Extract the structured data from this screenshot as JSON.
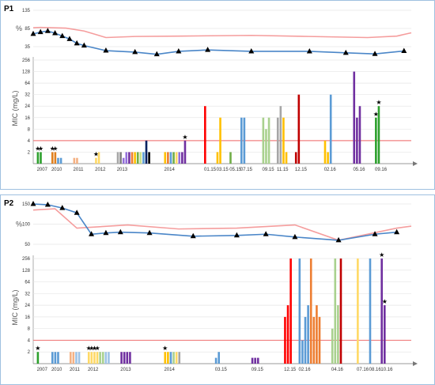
{
  "chart_data": [
    {
      "type": "bar",
      "panel": "P1",
      "percent_axis": {
        "label": "%",
        "ticks": [
          135,
          85,
          35
        ]
      },
      "mic_axis": {
        "label": "MIC (mg/L)",
        "ticks": [
          0,
          2,
          4,
          8,
          16,
          24,
          32,
          64,
          128,
          256
        ],
        "scale": "segmented-log",
        "breakpoint_line": 4
      },
      "x_labels": [
        "2007",
        "2010",
        "2011",
        "2012",
        "2013",
        "2014",
        "01.15",
        "03.15",
        "05.15",
        "07.15",
        "09.15",
        "11.15",
        "12.15",
        "02.16",
        "05.16",
        "09.16"
      ],
      "series": [
        {
          "color": "#f59d9d",
          "x": [
            0,
            10,
            45,
            70,
            100,
            140,
            200,
            300,
            380,
            460,
            500,
            520
          ],
          "values": [
            87,
            88,
            86,
            78,
            60,
            63,
            64,
            66,
            63,
            60,
            64,
            73
          ]
        },
        {
          "color": "#4a86c8",
          "x": [
            0,
            10,
            20,
            30,
            40,
            50,
            60,
            70,
            100,
            140,
            170,
            200,
            240,
            300,
            380,
            430,
            470,
            510
          ],
          "values": [
            70,
            75,
            78,
            72,
            64,
            56,
            44,
            38,
            24,
            20,
            14,
            22,
            26,
            22,
            22,
            18,
            15,
            23
          ]
        }
      ],
      "bar_groups": [
        {
          "label": "2007",
          "x": 5,
          "stars": [
            1,
            1
          ],
          "bars": [
            {
              "color": "#2ca02c",
              "value": 2
            },
            {
              "color": "#2ca02c",
              "value": 2
            }
          ]
        },
        {
          "label": "2010",
          "x": 25,
          "stars": [
            1,
            1
          ],
          "bars": [
            {
              "color": "#e08020",
              "value": 2
            },
            {
              "color": "#e08020",
              "value": 2
            },
            {
              "color": "#5b9bd5",
              "value": 1
            },
            {
              "color": "#5b9bd5",
              "value": 1
            }
          ]
        },
        {
          "label": "2011",
          "x": 55,
          "bars": [
            {
              "color": "#f4b183",
              "value": 1
            },
            {
              "color": "#f4b183",
              "value": 1
            }
          ]
        },
        {
          "label": "2012",
          "x": 85,
          "stars": [
            1
          ],
          "bars": [
            {
              "color": "#ffd966",
              "value": 1
            },
            {
              "color": "#ffd966",
              "value": 2
            }
          ]
        },
        {
          "label": "2013",
          "x": 115,
          "bars": [
            {
              "color": "#a6a6a6",
              "value": 2
            },
            {
              "color": "#7f7f7f",
              "value": 2
            },
            {
              "color": "#9370db",
              "value": 1
            },
            {
              "color": "#9370db",
              "value": 2
            },
            {
              "color": "#7030a0",
              "value": 2
            },
            {
              "color": "#ed7d31",
              "value": 2
            },
            {
              "color": "#ffc000",
              "value": 2
            },
            {
              "color": "#70ad47",
              "value": 2
            },
            {
              "color": "#c9df8a",
              "value": 2
            },
            {
              "color": "#5b9bd5",
              "value": 2
            },
            {
              "color": "#002060",
              "value": 4
            },
            {
              "color": "#000000",
              "value": 2
            }
          ]
        },
        {
          "label": "2014",
          "x": 180,
          "stars": [
            0,
            0,
            0,
            0,
            0,
            0,
            0,
            1
          ],
          "bars": [
            {
              "color": "#ffc000",
              "value": 2
            },
            {
              "color": "#ed7d31",
              "value": 2
            },
            {
              "color": "#5b9bd5",
              "value": 2
            },
            {
              "color": "#70ad47",
              "value": 2
            },
            {
              "color": "#ffd966",
              "value": 2
            },
            {
              "color": "#9370db",
              "value": 2
            },
            {
              "color": "#7030a0",
              "value": 2
            },
            {
              "color": "#7030a0",
              "value": 4
            }
          ]
        },
        {
          "label": "01.15",
          "x": 235,
          "bars": [
            {
              "color": "#ff0000",
              "value": 24
            }
          ]
        },
        {
          "label": "03.15",
          "x": 252,
          "bars": [
            {
              "color": "#ffc000",
              "value": 2
            },
            {
              "color": "#ffc000",
              "value": 16
            }
          ]
        },
        {
          "label": "05.15",
          "x": 270,
          "bars": [
            {
              "color": "#70ad47",
              "value": 2
            }
          ]
        },
        {
          "label": "07.15",
          "x": 285,
          "bars": [
            {
              "color": "#5b9bd5",
              "value": 16
            },
            {
              "color": "#5b9bd5",
              "value": 16
            }
          ]
        },
        {
          "label": "09.15",
          "x": 315,
          "bars": [
            {
              "color": "#a9d18e",
              "value": 16
            },
            {
              "color": "#a9d18e",
              "value": 8
            },
            {
              "color": "#a9d18e",
              "value": 16
            }
          ]
        },
        {
          "label": "11.15",
          "x": 335,
          "bars": [
            {
              "color": "#a6a6a6",
              "value": 16
            },
            {
              "color": "#a6a6a6",
              "value": 24
            },
            {
              "color": "#ffc000",
              "value": 16
            },
            {
              "color": "#ffc000",
              "value": 2
            }
          ]
        },
        {
          "label": "12.15",
          "x": 360,
          "bars": [
            {
              "color": "#c00000",
              "value": 2
            },
            {
              "color": "#c00000",
              "value": 32
            }
          ]
        },
        {
          "label": "02.16",
          "x": 400,
          "bars": [
            {
              "color": "#ffc000",
              "value": 4
            },
            {
              "color": "#ffc000",
              "value": 2
            },
            {
              "color": "#5b9bd5",
              "value": 32
            }
          ]
        },
        {
          "label": "05.16",
          "x": 440,
          "bars": [
            {
              "color": "#7030a0",
              "value": 128
            },
            {
              "color": "#7030a0",
              "value": 16
            },
            {
              "color": "#7030a0",
              "value": 24
            }
          ]
        },
        {
          "label": "09.16",
          "x": 470,
          "stars": [
            1,
            1
          ],
          "bars": [
            {
              "color": "#2ca02c",
              "value": 16
            },
            {
              "color": "#2ca02c",
              "value": 24
            }
          ]
        }
      ]
    },
    {
      "type": "bar",
      "panel": "P2",
      "percent_axis": {
        "label": "%",
        "ticks": [
          150,
          100,
          50
        ]
      },
      "mic_axis": {
        "label": "MIC (mg/L)",
        "ticks": [
          0,
          2,
          4,
          8,
          16,
          24,
          32,
          64,
          128,
          256
        ],
        "scale": "segmented-log",
        "breakpoint_line": 4
      },
      "x_labels": [
        "2007",
        "2010",
        "2011",
        "2012",
        "2013",
        "2014",
        "03.15",
        "09.15",
        "12.15",
        "02.16",
        "04.16",
        "07.16",
        "08.16",
        "10.16"
      ],
      "series": [
        {
          "color": "#f59d9d",
          "x": [
            0,
            30,
            60,
            130,
            200,
            280,
            360,
            420,
            500,
            520
          ],
          "values": [
            135,
            138,
            90,
            98,
            88,
            90,
            98,
            60,
            90,
            95
          ]
        },
        {
          "color": "#4a86c8",
          "x": [
            0,
            20,
            40,
            60,
            80,
            100,
            120,
            160,
            220,
            280,
            320,
            360,
            420,
            470,
            500
          ],
          "values": [
            150,
            148,
            140,
            128,
            75,
            78,
            80,
            78,
            70,
            72,
            75,
            68,
            60,
            75,
            80
          ]
        }
      ],
      "bar_groups": [
        {
          "label": "2007",
          "x": 5,
          "stars": [
            1
          ],
          "bars": [
            {
              "color": "#2ca02c",
              "value": 2
            }
          ]
        },
        {
          "label": "2010",
          "x": 25,
          "bars": [
            {
              "color": "#5b9bd5",
              "value": 2
            },
            {
              "color": "#5b9bd5",
              "value": 2
            },
            {
              "color": "#5b9bd5",
              "value": 2
            }
          ]
        },
        {
          "label": "2011",
          "x": 50,
          "bars": [
            {
              "color": "#f4b183",
              "value": 2
            },
            {
              "color": "#f4b183",
              "value": 2
            },
            {
              "color": "#9dc3e6",
              "value": 2
            },
            {
              "color": "#9dc3e6",
              "value": 2
            }
          ]
        },
        {
          "label": "2012",
          "x": 75,
          "stars": [
            1,
            1,
            1,
            1
          ],
          "bars": [
            {
              "color": "#ffd966",
              "value": 2
            },
            {
              "color": "#ffd966",
              "value": 2
            },
            {
              "color": "#ffd966",
              "value": 2
            },
            {
              "color": "#ffd966",
              "value": 2
            },
            {
              "color": "#a9d18e",
              "value": 2
            },
            {
              "color": "#a9d18e",
              "value": 2
            },
            {
              "color": "#9dc3e6",
              "value": 2
            },
            {
              "color": "#9dc3e6",
              "value": 2
            }
          ]
        },
        {
          "label": "2013",
          "x": 120,
          "bars": [
            {
              "color": "#7030a0",
              "value": 2
            },
            {
              "color": "#7030a0",
              "value": 2
            },
            {
              "color": "#7030a0",
              "value": 2
            },
            {
              "color": "#7030a0",
              "value": 2
            }
          ]
        },
        {
          "label": "2014",
          "x": 180,
          "stars": [
            1
          ],
          "bars": [
            {
              "color": "#ffc000",
              "value": 2
            },
            {
              "color": "#ffc000",
              "value": 2
            },
            {
              "color": "#5b9bd5",
              "value": 2
            },
            {
              "color": "#a9d18e",
              "value": 2
            },
            {
              "color": "#ffd966",
              "value": 2
            },
            {
              "color": "#a6a6a6",
              "value": 2
            }
          ]
        },
        {
          "label": "03.15",
          "x": 250,
          "bars": [
            {
              "color": "#5b9bd5",
              "value": 1
            },
            {
              "color": "#5b9bd5",
              "value": 2
            }
          ]
        },
        {
          "label": "09.15",
          "x": 300,
          "bars": [
            {
              "color": "#7030a0",
              "value": 1
            },
            {
              "color": "#7030a0",
              "value": 1
            },
            {
              "color": "#7030a0",
              "value": 1
            }
          ]
        },
        {
          "label": "12.15",
          "x": 345,
          "bars": [
            {
              "color": "#ff0000",
              "value": 16
            },
            {
              "color": "#ff0000",
              "value": 24
            },
            {
              "color": "#ff0000",
              "value": 256
            }
          ]
        },
        {
          "label": "02.16",
          "x": 365,
          "bars": [
            {
              "color": "#5b9bd5",
              "value": 256
            },
            {
              "color": "#5b9bd5",
              "value": 4
            },
            {
              "color": "#5b9bd5",
              "value": 16
            },
            {
              "color": "#5b9bd5",
              "value": 24
            },
            {
              "color": "#ed7d31",
              "value": 256
            },
            {
              "color": "#ed7d31",
              "value": 16
            },
            {
              "color": "#ed7d31",
              "value": 24
            },
            {
              "color": "#ed7d31",
              "value": 16
            }
          ]
        },
        {
          "label": "04.16",
          "x": 410,
          "bars": [
            {
              "color": "#a9d18e",
              "value": 8
            },
            {
              "color": "#a9d18e",
              "value": 256
            },
            {
              "color": "#a9d18e",
              "value": 24
            },
            {
              "color": "#c00000",
              "value": 256
            }
          ]
        },
        {
          "label": "07.16",
          "x": 445,
          "bars": [
            {
              "color": "#ffd966",
              "value": 256
            }
          ]
        },
        {
          "label": "08.16",
          "x": 462,
          "bars": [
            {
              "color": "#5b9bd5",
              "value": 256
            }
          ]
        },
        {
          "label": "10.16",
          "x": 478,
          "stars": [
            1,
            1
          ],
          "bars": [
            {
              "color": "#7030a0",
              "value": 256
            },
            {
              "color": "#7030a0",
              "value": 24
            }
          ]
        }
      ]
    }
  ]
}
